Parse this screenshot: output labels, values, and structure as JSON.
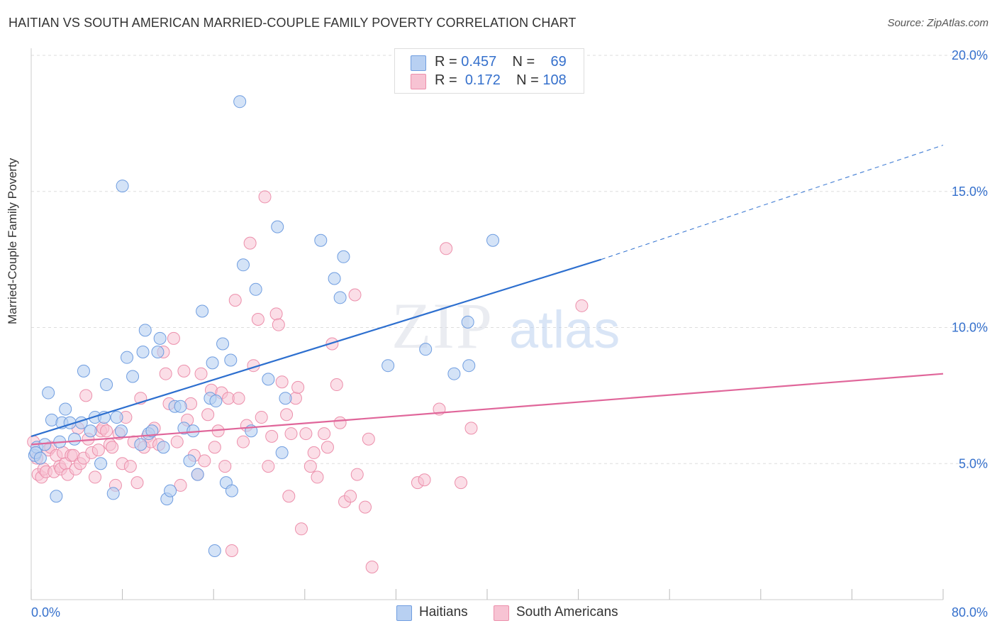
{
  "header": {
    "title": "HAITIAN VS SOUTH AMERICAN MARRIED-COUPLE FAMILY POVERTY CORRELATION CHART",
    "source": "Source: ZipAtlas.com"
  },
  "legend": {
    "rows": [
      {
        "r_label": "R =",
        "r_value": "0.457",
        "n_label": "N =",
        "n_value": "69"
      },
      {
        "r_label": "R =",
        "r_value": "0.172",
        "n_label": "N =",
        "n_value": "108"
      }
    ]
  },
  "colors": {
    "haitian_fill": "#b8d0f2",
    "haitian_stroke": "#6f9de0",
    "haitian_line": "#2d6fcf",
    "south_fill": "#f7c3d3",
    "south_stroke": "#ec8fab",
    "south_line": "#e0669a",
    "axis_label": "#3570cc",
    "grid": "#dddddd"
  },
  "watermark": {
    "zip": "ZIP",
    "atlas": "atlas"
  },
  "chart_data": {
    "type": "scatter",
    "title": "HAITIAN VS SOUTH AMERICAN MARRIED-COUPLE FAMILY POVERTY CORRELATION CHART",
    "xlabel": "",
    "ylabel": "Married-Couple Family Poverty",
    "xlim": [
      0,
      80
    ],
    "ylim": [
      0,
      20
    ],
    "x_tick_labels": [
      "0.0%",
      "80.0%"
    ],
    "y_tick_values": [
      5,
      10,
      15,
      20
    ],
    "y_tick_labels": [
      "5.0%",
      "10.0%",
      "15.0%",
      "20.0%"
    ],
    "grid": true,
    "legend_position": "bottom",
    "series": [
      {
        "name": "Haitians",
        "r": 0.457,
        "n": 69,
        "trend": {
          "x0": 0,
          "y0": 6.0,
          "x1": 50,
          "y1": 12.5,
          "dashed_to_x": 80,
          "dashed_to_y": 16.7
        },
        "points": [
          [
            0.3,
            5.3
          ],
          [
            0.5,
            5.6
          ],
          [
            1.2,
            5.7
          ],
          [
            1.5,
            7.6
          ],
          [
            1.8,
            6.6
          ],
          [
            2.2,
            3.8
          ],
          [
            2.5,
            5.8
          ],
          [
            2.7,
            6.5
          ],
          [
            3.0,
            7.0
          ],
          [
            3.4,
            6.5
          ],
          [
            3.8,
            5.9
          ],
          [
            4.4,
            6.5
          ],
          [
            4.6,
            8.4
          ],
          [
            5.2,
            6.2
          ],
          [
            5.6,
            6.7
          ],
          [
            6.1,
            5.0
          ],
          [
            6.4,
            6.7
          ],
          [
            6.6,
            7.9
          ],
          [
            7.2,
            3.9
          ],
          [
            7.5,
            6.7
          ],
          [
            7.9,
            6.2
          ],
          [
            8.0,
            15.2
          ],
          [
            8.4,
            8.9
          ],
          [
            8.9,
            8.2
          ],
          [
            9.6,
            5.7
          ],
          [
            9.8,
            9.1
          ],
          [
            10.0,
            9.9
          ],
          [
            10.3,
            6.1
          ],
          [
            10.6,
            6.2
          ],
          [
            11.1,
            9.1
          ],
          [
            11.3,
            9.6
          ],
          [
            11.6,
            5.6
          ],
          [
            11.9,
            3.7
          ],
          [
            12.2,
            4.0
          ],
          [
            12.6,
            7.1
          ],
          [
            13.1,
            7.1
          ],
          [
            13.4,
            6.3
          ],
          [
            13.9,
            5.1
          ],
          [
            14.2,
            6.2
          ],
          [
            14.6,
            4.6
          ],
          [
            15.0,
            10.6
          ],
          [
            15.7,
            7.4
          ],
          [
            15.9,
            8.7
          ],
          [
            16.2,
            7.3
          ],
          [
            16.1,
            1.8
          ],
          [
            16.8,
            9.4
          ],
          [
            17.1,
            4.3
          ],
          [
            17.5,
            8.8
          ],
          [
            17.6,
            4.0
          ],
          [
            18.3,
            18.3
          ],
          [
            18.6,
            12.3
          ],
          [
            19.3,
            6.2
          ],
          [
            19.7,
            11.4
          ],
          [
            20.8,
            8.1
          ],
          [
            21.6,
            13.7
          ],
          [
            22.0,
            5.4
          ],
          [
            22.3,
            7.4
          ],
          [
            25.4,
            13.2
          ],
          [
            26.6,
            11.8
          ],
          [
            27.1,
            11.1
          ],
          [
            27.4,
            12.6
          ],
          [
            31.3,
            8.6
          ],
          [
            34.6,
            9.2
          ],
          [
            37.1,
            8.3
          ],
          [
            38.3,
            10.2
          ],
          [
            38.4,
            8.6
          ],
          [
            40.5,
            13.2
          ],
          [
            0.4,
            5.4
          ],
          [
            0.8,
            5.2
          ]
        ]
      },
      {
        "name": "South Americans",
        "r": 0.172,
        "n": 108,
        "trend": {
          "x0": 0,
          "y0": 5.7,
          "x1": 80,
          "y1": 8.3
        },
        "points": [
          [
            0.2,
            5.8
          ],
          [
            0.5,
            5.2
          ],
          [
            0.6,
            4.6
          ],
          [
            0.9,
            4.5
          ],
          [
            1.1,
            4.8
          ],
          [
            1.3,
            4.7
          ],
          [
            1.5,
            5.5
          ],
          [
            1.7,
            5.6
          ],
          [
            2.0,
            4.7
          ],
          [
            2.2,
            5.3
          ],
          [
            2.5,
            4.9
          ],
          [
            2.6,
            4.8
          ],
          [
            2.8,
            5.4
          ],
          [
            3.0,
            5.0
          ],
          [
            3.2,
            4.6
          ],
          [
            3.5,
            5.3
          ],
          [
            3.7,
            5.3
          ],
          [
            3.9,
            4.8
          ],
          [
            4.1,
            6.3
          ],
          [
            4.3,
            5.0
          ],
          [
            4.6,
            5.2
          ],
          [
            4.8,
            7.5
          ],
          [
            5.0,
            5.9
          ],
          [
            5.3,
            5.4
          ],
          [
            5.6,
            4.5
          ],
          [
            5.9,
            5.5
          ],
          [
            6.1,
            6.2
          ],
          [
            6.3,
            6.3
          ],
          [
            6.6,
            6.2
          ],
          [
            6.9,
            5.7
          ],
          [
            7.1,
            5.6
          ],
          [
            7.4,
            4.2
          ],
          [
            7.7,
            6.1
          ],
          [
            8.0,
            5.0
          ],
          [
            8.3,
            6.7
          ],
          [
            8.7,
            4.9
          ],
          [
            9.0,
            5.8
          ],
          [
            9.3,
            4.3
          ],
          [
            9.6,
            7.4
          ],
          [
            9.9,
            5.6
          ],
          [
            10.2,
            6.0
          ],
          [
            10.5,
            5.8
          ],
          [
            10.8,
            6.3
          ],
          [
            11.2,
            5.7
          ],
          [
            11.6,
            9.1
          ],
          [
            11.8,
            8.3
          ],
          [
            12.1,
            7.2
          ],
          [
            12.5,
            9.6
          ],
          [
            12.8,
            5.8
          ],
          [
            13.1,
            4.2
          ],
          [
            13.4,
            8.4
          ],
          [
            13.7,
            6.6
          ],
          [
            14.0,
            7.2
          ],
          [
            14.3,
            5.3
          ],
          [
            14.6,
            4.6
          ],
          [
            14.9,
            8.3
          ],
          [
            15.2,
            5.1
          ],
          [
            15.5,
            6.8
          ],
          [
            15.8,
            7.7
          ],
          [
            16.1,
            5.6
          ],
          [
            16.4,
            6.2
          ],
          [
            16.7,
            7.6
          ],
          [
            17.0,
            4.9
          ],
          [
            17.3,
            7.4
          ],
          [
            17.6,
            1.8
          ],
          [
            17.9,
            11.0
          ],
          [
            18.2,
            7.4
          ],
          [
            18.6,
            5.8
          ],
          [
            18.9,
            6.4
          ],
          [
            19.2,
            13.1
          ],
          [
            19.5,
            8.6
          ],
          [
            19.9,
            10.3
          ],
          [
            20.2,
            6.7
          ],
          [
            20.5,
            14.8
          ],
          [
            20.8,
            4.9
          ],
          [
            21.1,
            6.0
          ],
          [
            21.5,
            10.5
          ],
          [
            21.7,
            10.1
          ],
          [
            22.0,
            8.0
          ],
          [
            22.4,
            6.8
          ],
          [
            22.6,
            3.8
          ],
          [
            22.8,
            6.1
          ],
          [
            23.2,
            7.4
          ],
          [
            23.4,
            7.8
          ],
          [
            23.7,
            2.6
          ],
          [
            24.1,
            6.1
          ],
          [
            24.5,
            4.9
          ],
          [
            24.8,
            5.4
          ],
          [
            25.1,
            4.5
          ],
          [
            25.7,
            6.1
          ],
          [
            26.0,
            5.6
          ],
          [
            26.4,
            9.4
          ],
          [
            26.8,
            7.9
          ],
          [
            27.1,
            6.5
          ],
          [
            27.5,
            3.6
          ],
          [
            28.0,
            3.8
          ],
          [
            28.4,
            11.2
          ],
          [
            28.6,
            4.6
          ],
          [
            29.3,
            3.4
          ],
          [
            29.6,
            5.9
          ],
          [
            29.9,
            1.2
          ],
          [
            33.9,
            4.3
          ],
          [
            34.5,
            4.4
          ],
          [
            35.8,
            7.0
          ],
          [
            36.4,
            12.9
          ],
          [
            37.7,
            4.3
          ],
          [
            38.6,
            6.3
          ],
          [
            48.3,
            10.8
          ]
        ]
      }
    ]
  },
  "legend_bottom": {
    "haitians": "Haitians",
    "south_americans": "South Americans"
  }
}
